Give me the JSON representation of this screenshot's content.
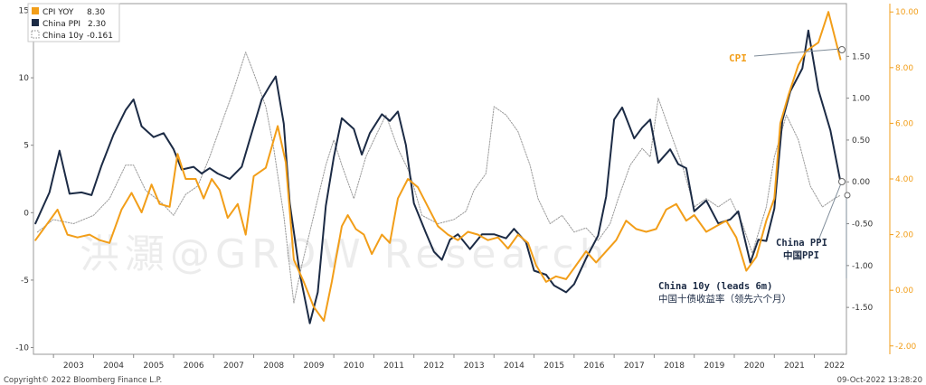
{
  "chart_data": {
    "type": "line",
    "x_range": [
      2002.5,
      2022.8
    ],
    "x_ticks": [
      "2003",
      "2004",
      "2005",
      "2006",
      "2007",
      "2008",
      "2009",
      "2010",
      "2011",
      "2012",
      "2013",
      "2014",
      "2015",
      "2016",
      "2017",
      "2018",
      "2019",
      "2020",
      "2021",
      "2022"
    ],
    "y_left": {
      "range": [
        -10.5,
        15.5
      ],
      "ticks": [
        "-10",
        "-5",
        "0",
        "5",
        "10",
        "15"
      ],
      "values": [
        -10,
        -5,
        0,
        5,
        10,
        15
      ]
    },
    "y_mid": {
      "range": [
        -2.06,
        2.13
      ],
      "ticks": [
        "-1.50",
        "-1.00",
        "-0.50",
        "0.00",
        "0.50",
        "1.00",
        "1.50"
      ],
      "values": [
        -1.5,
        -1.0,
        -0.5,
        0.0,
        0.5,
        1.0,
        1.5
      ]
    },
    "y_right": {
      "range": [
        -2.3,
        10.3
      ],
      "ticks": [
        "-2.00",
        "0.00",
        "2.00",
        "4.00",
        "6.00",
        "8.00",
        "10.00"
      ],
      "values": [
        -2,
        0,
        2,
        4,
        6,
        8,
        10
      ],
      "color": "#f29e19"
    },
    "series": [
      {
        "name": "China 10y",
        "legend_value": "-0.161",
        "color": "#9a9a9a",
        "style": "dotted",
        "axis": "mid",
        "points": [
          [
            2002.6,
            -0.6
          ],
          [
            2003.0,
            -0.45
          ],
          [
            2003.5,
            -0.5
          ],
          [
            2004.0,
            -0.4
          ],
          [
            2004.4,
            -0.2
          ],
          [
            2004.8,
            0.2
          ],
          [
            2005.0,
            0.2
          ],
          [
            2005.3,
            -0.1
          ],
          [
            2005.7,
            -0.25
          ],
          [
            2006.0,
            -0.4
          ],
          [
            2006.3,
            -0.15
          ],
          [
            2006.6,
            -0.05
          ],
          [
            2006.9,
            0.3
          ],
          [
            2007.2,
            0.7
          ],
          [
            2007.5,
            1.1
          ],
          [
            2007.8,
            1.55
          ],
          [
            2008.0,
            1.3
          ],
          [
            2008.3,
            0.9
          ],
          [
            2008.5,
            0.4
          ],
          [
            2008.75,
            -0.4
          ],
          [
            2009.0,
            -1.45
          ],
          [
            2009.2,
            -1.0
          ],
          [
            2009.5,
            -0.4
          ],
          [
            2009.8,
            0.2
          ],
          [
            2010.0,
            0.5
          ],
          [
            2010.2,
            0.2
          ],
          [
            2010.5,
            -0.2
          ],
          [
            2010.8,
            0.3
          ],
          [
            2011.0,
            0.5
          ],
          [
            2011.3,
            0.8
          ],
          [
            2011.6,
            0.4
          ],
          [
            2011.9,
            0.1
          ],
          [
            2012.2,
            -0.4
          ],
          [
            2012.6,
            -0.5
          ],
          [
            2013.0,
            -0.45
          ],
          [
            2013.3,
            -0.35
          ],
          [
            2013.5,
            -0.1
          ],
          [
            2013.8,
            0.1
          ],
          [
            2014.0,
            0.9
          ],
          [
            2014.3,
            0.8
          ],
          [
            2014.6,
            0.6
          ],
          [
            2014.9,
            0.2
          ],
          [
            2015.1,
            -0.2
          ],
          [
            2015.4,
            -0.5
          ],
          [
            2015.7,
            -0.4
          ],
          [
            2016.0,
            -0.6
          ],
          [
            2016.3,
            -0.55
          ],
          [
            2016.6,
            -0.7
          ],
          [
            2016.9,
            -0.5
          ],
          [
            2017.1,
            -0.2
          ],
          [
            2017.4,
            0.2
          ],
          [
            2017.7,
            0.4
          ],
          [
            2017.9,
            0.3
          ],
          [
            2018.1,
            1.0
          ],
          [
            2018.4,
            0.6
          ],
          [
            2018.7,
            0.2
          ],
          [
            2019.0,
            -0.3
          ],
          [
            2019.3,
            -0.2
          ],
          [
            2019.6,
            -0.3
          ],
          [
            2019.9,
            -0.2
          ],
          [
            2020.2,
            -0.5
          ],
          [
            2020.45,
            -0.85
          ],
          [
            2020.8,
            -0.3
          ],
          [
            2021.0,
            0.3
          ],
          [
            2021.3,
            0.8
          ],
          [
            2021.6,
            0.5
          ],
          [
            2021.9,
            -0.05
          ],
          [
            2022.2,
            -0.3
          ],
          [
            2022.5,
            -0.2
          ],
          [
            2022.65,
            -0.161
          ]
        ]
      },
      {
        "name": "China PPI",
        "legend_value": "2.30",
        "color": "#1c2b45",
        "style": "solid",
        "axis": "left",
        "points": [
          [
            2002.55,
            -0.8
          ],
          [
            2002.9,
            1.5
          ],
          [
            2003.15,
            4.6
          ],
          [
            2003.4,
            1.4
          ],
          [
            2003.7,
            1.5
          ],
          [
            2003.95,
            1.3
          ],
          [
            2004.2,
            3.5
          ],
          [
            2004.5,
            5.8
          ],
          [
            2004.8,
            7.6
          ],
          [
            2005.0,
            8.4
          ],
          [
            2005.2,
            6.4
          ],
          [
            2005.5,
            5.6
          ],
          [
            2005.75,
            5.9
          ],
          [
            2006.0,
            4.7
          ],
          [
            2006.2,
            3.2
          ],
          [
            2006.5,
            3.4
          ],
          [
            2006.7,
            2.9
          ],
          [
            2006.9,
            3.3
          ],
          [
            2007.1,
            2.9
          ],
          [
            2007.4,
            2.5
          ],
          [
            2007.7,
            3.4
          ],
          [
            2007.9,
            5.4
          ],
          [
            2008.2,
            8.4
          ],
          [
            2008.4,
            9.4
          ],
          [
            2008.55,
            10.1
          ],
          [
            2008.75,
            6.6
          ],
          [
            2008.9,
            0.7
          ],
          [
            2009.15,
            -4.5
          ],
          [
            2009.4,
            -8.2
          ],
          [
            2009.6,
            -5.9
          ],
          [
            2009.8,
            0.5
          ],
          [
            2010.0,
            4.1
          ],
          [
            2010.2,
            7.0
          ],
          [
            2010.5,
            6.2
          ],
          [
            2010.7,
            4.3
          ],
          [
            2010.9,
            5.9
          ],
          [
            2011.2,
            7.3
          ],
          [
            2011.4,
            6.8
          ],
          [
            2011.6,
            7.5
          ],
          [
            2011.8,
            5.0
          ],
          [
            2012.0,
            0.7
          ],
          [
            2012.3,
            -1.5
          ],
          [
            2012.5,
            -2.9
          ],
          [
            2012.7,
            -3.5
          ],
          [
            2012.9,
            -2.0
          ],
          [
            2013.1,
            -1.6
          ],
          [
            2013.4,
            -2.7
          ],
          [
            2013.7,
            -1.6
          ],
          [
            2014.0,
            -1.6
          ],
          [
            2014.3,
            -1.9
          ],
          [
            2014.5,
            -1.2
          ],
          [
            2014.8,
            -2.2
          ],
          [
            2015.0,
            -4.3
          ],
          [
            2015.3,
            -4.6
          ],
          [
            2015.5,
            -5.4
          ],
          [
            2015.8,
            -5.9
          ],
          [
            2016.0,
            -5.3
          ],
          [
            2016.3,
            -3.4
          ],
          [
            2016.6,
            -1.7
          ],
          [
            2016.8,
            1.2
          ],
          [
            2017.0,
            6.9
          ],
          [
            2017.2,
            7.8
          ],
          [
            2017.5,
            5.5
          ],
          [
            2017.7,
            6.3
          ],
          [
            2017.9,
            6.9
          ],
          [
            2018.1,
            3.7
          ],
          [
            2018.4,
            4.7
          ],
          [
            2018.6,
            3.6
          ],
          [
            2018.8,
            3.3
          ],
          [
            2019.0,
            0.1
          ],
          [
            2019.3,
            0.9
          ],
          [
            2019.6,
            -0.8
          ],
          [
            2019.9,
            -0.5
          ],
          [
            2020.1,
            0.1
          ],
          [
            2020.4,
            -3.7
          ],
          [
            2020.6,
            -2.0
          ],
          [
            2020.8,
            -2.1
          ],
          [
            2021.0,
            0.3
          ],
          [
            2021.2,
            6.8
          ],
          [
            2021.4,
            9.0
          ],
          [
            2021.7,
            10.7
          ],
          [
            2021.85,
            13.5
          ],
          [
            2022.1,
            9.1
          ],
          [
            2022.4,
            6.1
          ],
          [
            2022.65,
            2.3
          ]
        ]
      },
      {
        "name": "CPI YOY",
        "legend_value": "8.30",
        "color": "#f29e19",
        "style": "solid",
        "axis": "right",
        "points": [
          [
            2002.55,
            1.8
          ],
          [
            2002.85,
            2.4
          ],
          [
            2003.1,
            2.9
          ],
          [
            2003.35,
            2.0
          ],
          [
            2003.6,
            1.9
          ],
          [
            2003.9,
            2.0
          ],
          [
            2004.15,
            1.8
          ],
          [
            2004.4,
            1.7
          ],
          [
            2004.7,
            2.9
          ],
          [
            2004.95,
            3.5
          ],
          [
            2005.2,
            2.8
          ],
          [
            2005.45,
            3.8
          ],
          [
            2005.65,
            3.1
          ],
          [
            2005.9,
            3.0
          ],
          [
            2006.1,
            4.9
          ],
          [
            2006.3,
            4.0
          ],
          [
            2006.55,
            4.0
          ],
          [
            2006.75,
            3.3
          ],
          [
            2006.95,
            4.0
          ],
          [
            2007.15,
            3.6
          ],
          [
            2007.35,
            2.6
          ],
          [
            2007.6,
            3.1
          ],
          [
            2007.8,
            2.0
          ],
          [
            2008.0,
            4.1
          ],
          [
            2008.3,
            4.4
          ],
          [
            2008.6,
            5.9
          ],
          [
            2008.8,
            4.6
          ],
          [
            2009.0,
            1.1
          ],
          [
            2009.25,
            0.3
          ],
          [
            2009.5,
            -0.6
          ],
          [
            2009.75,
            -1.1
          ],
          [
            2009.95,
            0.3
          ],
          [
            2010.2,
            2.3
          ],
          [
            2010.35,
            2.7
          ],
          [
            2010.55,
            2.2
          ],
          [
            2010.75,
            2.0
          ],
          [
            2010.95,
            1.3
          ],
          [
            2011.2,
            2.0
          ],
          [
            2011.4,
            1.7
          ],
          [
            2011.6,
            3.3
          ],
          [
            2011.85,
            4.0
          ],
          [
            2012.1,
            3.7
          ],
          [
            2012.35,
            3.0
          ],
          [
            2012.6,
            2.3
          ],
          [
            2012.85,
            2.0
          ],
          [
            2013.1,
            1.8
          ],
          [
            2013.35,
            2.1
          ],
          [
            2013.6,
            2.0
          ],
          [
            2013.85,
            1.8
          ],
          [
            2014.1,
            1.9
          ],
          [
            2014.35,
            1.5
          ],
          [
            2014.6,
            2.0
          ],
          [
            2014.85,
            1.7
          ],
          [
            2015.05,
            0.9
          ],
          [
            2015.3,
            0.3
          ],
          [
            2015.55,
            0.5
          ],
          [
            2015.8,
            0.4
          ],
          [
            2016.05,
            0.9
          ],
          [
            2016.3,
            1.4
          ],
          [
            2016.55,
            1.0
          ],
          [
            2016.8,
            1.4
          ],
          [
            2017.05,
            1.8
          ],
          [
            2017.3,
            2.5
          ],
          [
            2017.55,
            2.2
          ],
          [
            2017.8,
            2.1
          ],
          [
            2018.05,
            2.2
          ],
          [
            2018.3,
            2.9
          ],
          [
            2018.55,
            3.1
          ],
          [
            2018.8,
            2.5
          ],
          [
            2019.0,
            2.7
          ],
          [
            2019.3,
            2.1
          ],
          [
            2019.55,
            2.3
          ],
          [
            2019.8,
            2.5
          ],
          [
            2020.05,
            1.9
          ],
          [
            2020.3,
            0.7
          ],
          [
            2020.55,
            1.2
          ],
          [
            2020.8,
            2.5
          ],
          [
            2021.0,
            3.3
          ],
          [
            2021.15,
            6.0
          ],
          [
            2021.35,
            7.0
          ],
          [
            2021.6,
            8.1
          ],
          [
            2021.8,
            8.6
          ],
          [
            2022.1,
            8.9
          ],
          [
            2022.35,
            10.0
          ],
          [
            2022.65,
            8.3
          ]
        ]
      }
    ],
    "annotations": {
      "cpi": "CPI",
      "ppi": [
        "China PPI",
        "中国PPI"
      ],
      "yield": [
        "China 10y (leads 6m)",
        "中国十债收益率（领先六个月）"
      ]
    },
    "watermark": "洪灝@GROW Research"
  },
  "footer": {
    "left": "Copyright© 2022 Bloomberg Finance L.P.",
    "right": "09-Oct-2022 13:28:20"
  },
  "legend": {
    "items": [
      {
        "label": "CPI YOY",
        "value": "8.30",
        "color": "#f29e19",
        "swatch": "solid"
      },
      {
        "label": "China PPI",
        "value": "2.30",
        "color": "#1c2b45",
        "swatch": "solid"
      },
      {
        "label": "China 10y",
        "value": "-0.161",
        "color": "#9a9a9a",
        "swatch": "dotted"
      }
    ]
  }
}
